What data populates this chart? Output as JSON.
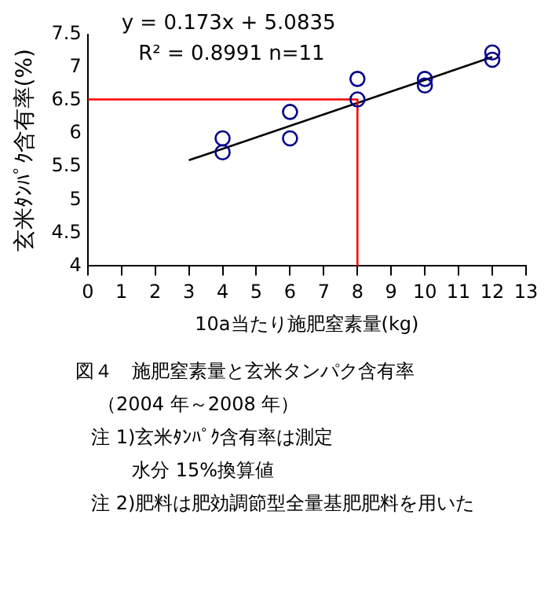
{
  "chart_data": {
    "type": "scatter",
    "title": "図４　施肥窒素量と玄米タンパク含有率",
    "subtitle": "（2004 年～2008 年）",
    "xlabel": "10a当たり施肥窒素量(kg)",
    "ylabel": "玄米ﾀﾝﾊﾟｸ含有率(%)",
    "annotations": [
      "y = 0.173x + 5.0835",
      "R² = 0.8991 n=11",
      "注 1)玄米ﾀﾝﾊﾟｸ含有率は測定",
      "水分 15%換算値",
      "注 2)肥料は肥効調節型全量基肥肥料を用いた"
    ],
    "xlim": [
      0,
      13
    ],
    "xticks": [
      0,
      1,
      2,
      3,
      4,
      5,
      6,
      7,
      8,
      9,
      10,
      11,
      12,
      13
    ],
    "ylim": [
      4,
      7.5
    ],
    "yticks": [
      4,
      4.5,
      5,
      5.5,
      6,
      6.5,
      7,
      7.5
    ],
    "grid": false,
    "legend": false,
    "marker": "circle",
    "series": [
      {
        "color": "#00008b",
        "x": [
          4,
          4,
          6,
          6,
          8,
          8,
          10,
          10,
          12,
          12
        ],
        "values": [
          5.93,
          5.72,
          6.33,
          5.93,
          6.83,
          6.52,
          6.83,
          6.73,
          7.23,
          7.12
        ]
      },
      {
        "type": "line",
        "marker": "none",
        "color": "#000000",
        "x": [
          3,
          12
        ],
        "values": [
          5.6,
          7.16
        ]
      },
      {
        "type": "line",
        "marker": "none",
        "color": "#ff0000",
        "x": [
          0,
          8,
          8
        ],
        "values": [
          6.52,
          6.52,
          4
        ]
      }
    ]
  }
}
